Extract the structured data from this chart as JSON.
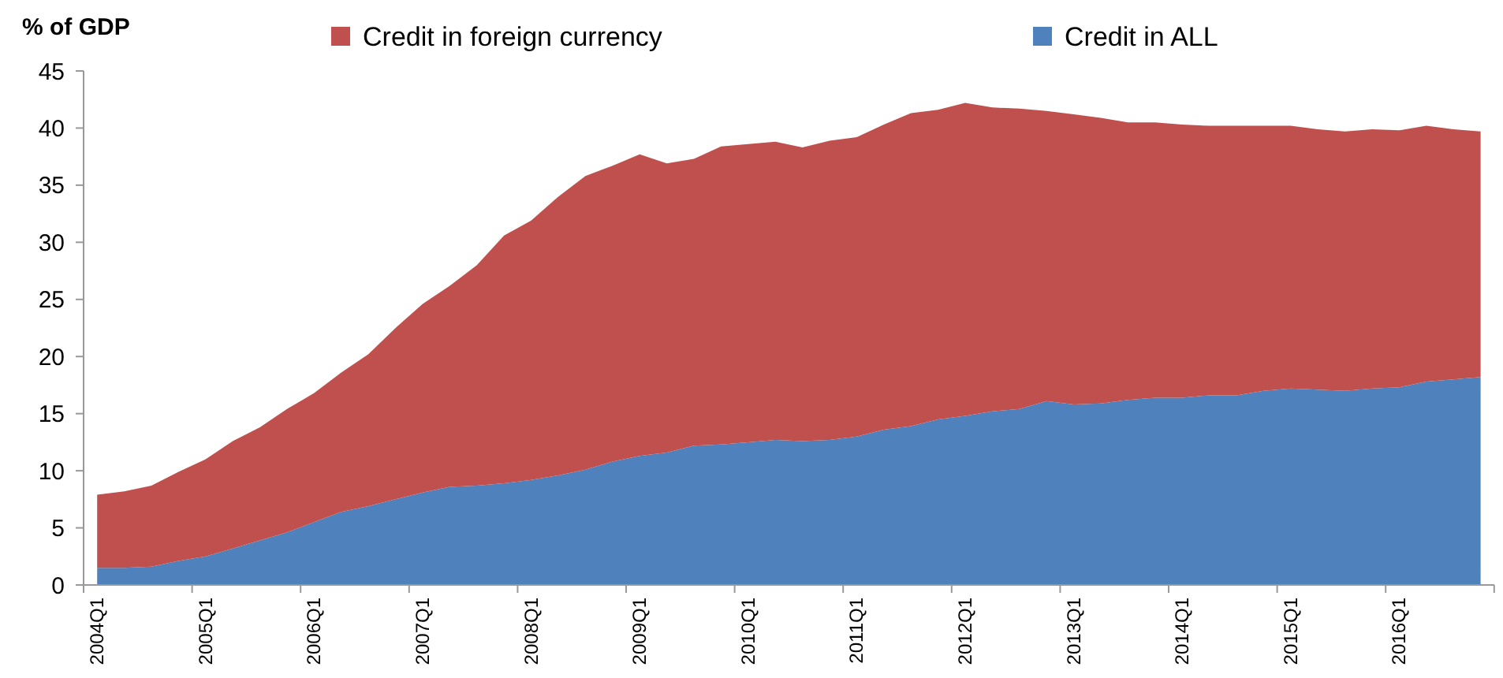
{
  "chart_data": {
    "type": "area",
    "stacked": true,
    "ylabel": "% of GDP",
    "categories": [
      "2004Q1",
      null,
      null,
      null,
      "2005Q1",
      null,
      null,
      null,
      "2006Q1",
      null,
      null,
      null,
      "2007Q1",
      null,
      null,
      null,
      "2008Q1",
      null,
      null,
      null,
      "2009Q1",
      null,
      null,
      null,
      "2010Q1",
      null,
      null,
      null,
      "2011Q1",
      null,
      null,
      null,
      "2012Q1",
      null,
      null,
      null,
      "2013Q1",
      null,
      null,
      null,
      "2014Q1",
      null,
      null,
      null,
      "2015Q1",
      null,
      null,
      null,
      "2016Q1",
      null,
      null,
      null
    ],
    "series": [
      {
        "name": "Credit in ALL",
        "color": "#4f81bd",
        "values": [
          1.5,
          1.5,
          1.6,
          2.1,
          2.5,
          3.2,
          3.9,
          4.6,
          5.5,
          6.4,
          6.9,
          7.5,
          8.1,
          8.6,
          8.7,
          8.9,
          9.2,
          9.6,
          10.1,
          10.8,
          11.3,
          11.6,
          12.2,
          12.3,
          12.5,
          12.7,
          12.6,
          12.7,
          13.0,
          13.6,
          13.9,
          14.5,
          14.8,
          15.2,
          15.4,
          16.1,
          15.8,
          15.9,
          16.2,
          16.4,
          16.4,
          16.6,
          16.6,
          17.0,
          17.2,
          17.1,
          17.0,
          17.2,
          17.3,
          17.8,
          18.0,
          18.2
        ]
      },
      {
        "name": "Credit in foreign currency",
        "color": "#c0504d",
        "values": [
          6.4,
          6.7,
          7.1,
          7.8,
          8.5,
          9.4,
          9.9,
          10.8,
          11.3,
          12.2,
          13.3,
          15.0,
          16.5,
          17.6,
          19.3,
          21.7,
          22.7,
          24.4,
          25.7,
          25.9,
          26.4,
          25.3,
          25.1,
          26.1,
          26.1,
          26.1,
          25.7,
          26.2,
          26.2,
          26.7,
          27.4,
          27.1,
          27.4,
          26.6,
          26.3,
          25.4,
          25.4,
          25.0,
          24.3,
          24.1,
          23.9,
          23.6,
          23.6,
          23.2,
          23.0,
          22.8,
          22.7,
          22.7,
          22.5,
          22.4,
          21.9,
          21.5
        ]
      }
    ],
    "ylim": [
      0,
      45
    ],
    "yticks": [
      0,
      5,
      10,
      15,
      20,
      25,
      30,
      35,
      40,
      45
    ],
    "legend": "top"
  }
}
